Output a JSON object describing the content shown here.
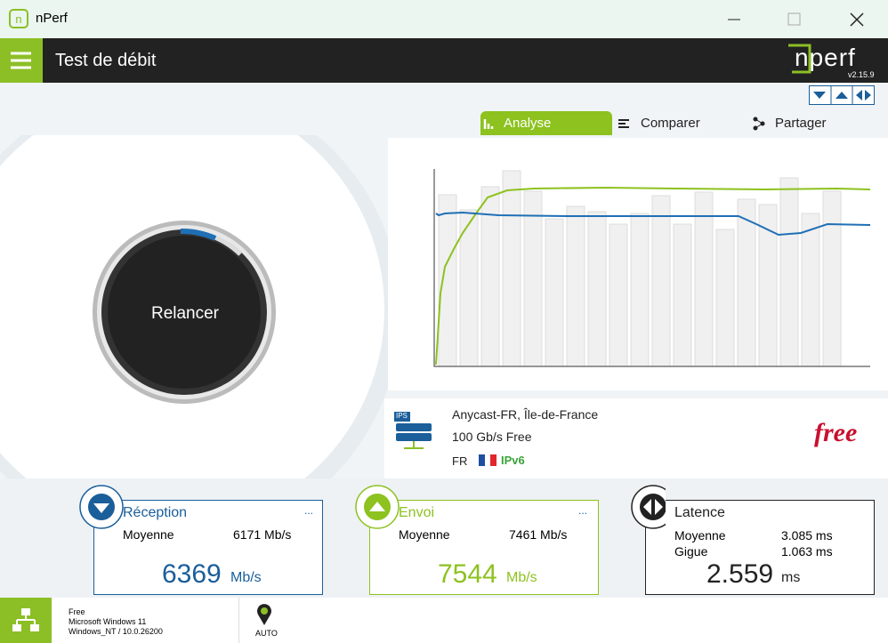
{
  "window": {
    "title": "nPerf"
  },
  "header": {
    "title": "Test de débit",
    "logo": "nperf",
    "version": "v2.15.9"
  },
  "tabs": [
    "Analyse",
    "Comparer",
    "Partager"
  ],
  "action": "Relancer",
  "server": {
    "icon": "IPS",
    "location": "Anycast-FR, Île-de-France",
    "capacity": "100 Gb/s Free",
    "country": "FR",
    "protocol": "IPv6",
    "isp_logo": "free"
  },
  "cards": [
    {
      "title": "Réception",
      "more": "...",
      "rows": [
        [
          "Moyenne",
          "6171 Mb/s"
        ]
      ],
      "value": "6369",
      "unit": "Mb/s"
    },
    {
      "title": "Envoi",
      "more": "...",
      "rows": [
        [
          "Moyenne",
          "7461 Mb/s"
        ]
      ],
      "value": "7544",
      "unit": "Mb/s"
    },
    {
      "title": "Latence",
      "rows": [
        [
          "Moyenne",
          "3.085 ms"
        ],
        [
          "Gigue",
          "1.063 ms"
        ]
      ],
      "value": "2.559",
      "unit": "ms"
    }
  ],
  "footer": {
    "isp": "Free",
    "os": "Microsoft Windows 11",
    "kernel": "Windows_NT / 10.0.26200",
    "mode": "AUTO"
  }
}
